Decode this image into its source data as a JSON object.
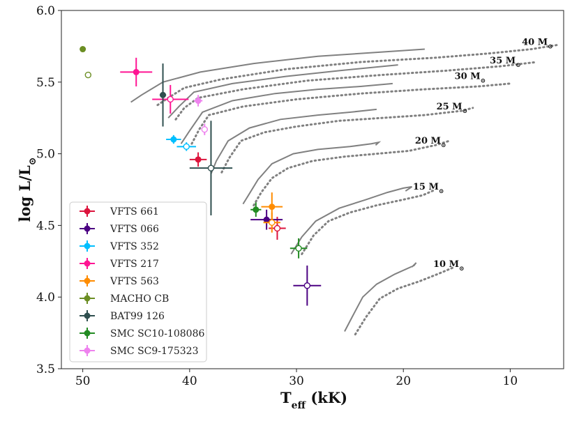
{
  "chart_data": {
    "type": "scatter",
    "title": "",
    "xlabel": "T_eff (kK)",
    "xlabel_main": "T",
    "xlabel_sub": "eff",
    "xlabel_unit": "(kK)",
    "ylabel": "log L/L⊙",
    "ylabel_main": "log L/L",
    "ylabel_sub": "⊙",
    "xlim": [
      52,
      5
    ],
    "ylim": [
      3.5,
      6.0
    ],
    "x_ticks": [
      50,
      40,
      30,
      20,
      10
    ],
    "x_tick_labels": [
      "50",
      "40",
      "30",
      "20",
      "10"
    ],
    "y_ticks": [
      3.5,
      4.0,
      4.5,
      5.0,
      5.5,
      6.0
    ],
    "y_tick_labels": [
      "3.5",
      "4.0",
      "4.5",
      "5.0",
      "5.5",
      "6.0"
    ],
    "legend_position": "lower-left",
    "series": [
      {
        "name": "VFTS 661",
        "color": "#dc143c",
        "filled": {
          "x": 39.2,
          "y": 4.96,
          "xerr": 0.8,
          "yerr": 0.05
        },
        "open": {
          "x": 31.8,
          "y": 4.48,
          "xerr": 0.8,
          "yerr": 0.08
        }
      },
      {
        "name": "VFTS 066",
        "color": "#4b0082",
        "filled": {
          "x": 32.8,
          "y": 4.54,
          "xerr": 1.5,
          "yerr": 0.07
        },
        "open": {
          "x": 29.0,
          "y": 4.08,
          "xerr": 1.3,
          "yerr": 0.14
        }
      },
      {
        "name": "VFTS 352",
        "color": "#00bfff",
        "filled": {
          "x": 41.5,
          "y": 5.1,
          "xerr": 0.7,
          "yerr": 0.03
        },
        "open": {
          "x": 40.3,
          "y": 5.05,
          "xerr": 0.9,
          "yerr": 0.03
        }
      },
      {
        "name": "VFTS 217",
        "color": "#ff1493",
        "filled": {
          "x": 45.0,
          "y": 5.57,
          "xerr": 1.5,
          "yerr": 0.1
        },
        "open": {
          "x": 41.8,
          "y": 5.38,
          "xerr": 1.7,
          "yerr": 0.1
        }
      },
      {
        "name": "VFTS 563",
        "color": "#ff8c00",
        "filled": {
          "x": 32.3,
          "y": 4.63,
          "xerr": 1.0,
          "yerr": 0.1
        },
        "open": {
          "x": 32.3,
          "y": 4.52,
          "xerr": 0.8,
          "yerr": 0.07
        }
      },
      {
        "name": "MACHO CB",
        "color": "#6b8e23",
        "filled": {
          "x": 50.0,
          "y": 5.73,
          "xerr": 0,
          "yerr": 0
        },
        "open": {
          "x": 49.5,
          "y": 5.55,
          "xerr": 0,
          "yerr": 0
        }
      },
      {
        "name": "BAT99 126",
        "color": "#2f4f4f",
        "filled": {
          "x": 42.5,
          "y": 5.41,
          "xerr": 0.3,
          "yerr": 0.22
        },
        "open": {
          "x": 38.0,
          "y": 4.9,
          "xerr": 2.0,
          "yerr": 0.33
        }
      },
      {
        "name": "SMC SC10-108086",
        "color": "#228b22",
        "filled": {
          "x": 33.8,
          "y": 4.61,
          "xerr": 0.5,
          "yerr": 0.05
        },
        "open": {
          "x": 29.8,
          "y": 4.34,
          "xerr": 0.8,
          "yerr": 0.07
        }
      },
      {
        "name": "SMC SC9-175323",
        "color": "#ee82ee",
        "filled": {
          "x": 39.2,
          "y": 5.37,
          "xerr": 0.4,
          "yerr": 0.04
        },
        "open": {
          "x": 38.6,
          "y": 5.17,
          "xerr": 0.3,
          "yerr": 0.04
        }
      }
    ],
    "tracks": [
      {
        "label": "10 M",
        "label_sub": "⊙",
        "label_at": [
          14.3,
          4.21
        ],
        "solid": [
          [
            25.5,
            3.76
          ],
          [
            24.8,
            3.86
          ],
          [
            23.8,
            4.0
          ],
          [
            22.5,
            4.09
          ],
          [
            20.8,
            4.16
          ],
          [
            19.0,
            4.22
          ],
          [
            18.8,
            4.24
          ],
          [
            19.2,
            4.21
          ]
        ],
        "dotted": [
          [
            24.5,
            3.74
          ],
          [
            23.5,
            3.86
          ],
          [
            22.2,
            3.99
          ],
          [
            20.5,
            4.06
          ],
          [
            18.5,
            4.11
          ],
          [
            16.8,
            4.16
          ],
          [
            15.2,
            4.21
          ]
        ]
      },
      {
        "label": "15 M",
        "label_sub": "⊙",
        "label_at": [
          16.2,
          4.75
        ],
        "solid": [
          [
            30.5,
            4.3
          ],
          [
            29.5,
            4.42
          ],
          [
            28.2,
            4.53
          ],
          [
            26.0,
            4.62
          ],
          [
            23.5,
            4.68
          ],
          [
            21.5,
            4.73
          ],
          [
            20.0,
            4.76
          ],
          [
            19.2,
            4.77
          ],
          [
            19.8,
            4.74
          ]
        ],
        "dotted": [
          [
            29.5,
            4.3
          ],
          [
            28.4,
            4.43
          ],
          [
            27.0,
            4.53
          ],
          [
            25.0,
            4.59
          ],
          [
            22.5,
            4.64
          ],
          [
            20.0,
            4.68
          ],
          [
            18.2,
            4.71
          ],
          [
            17.0,
            4.75
          ]
        ]
      },
      {
        "label": "20 M",
        "label_sub": "⊙",
        "label_at": [
          16.0,
          5.07
        ],
        "solid": [
          [
            35.0,
            4.65
          ],
          [
            34.5,
            4.71
          ],
          [
            33.6,
            4.82
          ],
          [
            32.3,
            4.93
          ],
          [
            30.3,
            5.0
          ],
          [
            28.0,
            5.03
          ],
          [
            25.0,
            5.05
          ],
          [
            23.0,
            5.07
          ],
          [
            22.3,
            5.08
          ],
          [
            22.6,
            5.06
          ]
        ],
        "dotted": [
          [
            34.0,
            4.64
          ],
          [
            33.3,
            4.73
          ],
          [
            32.3,
            4.83
          ],
          [
            30.8,
            4.9
          ],
          [
            28.5,
            4.95
          ],
          [
            25.5,
            4.98
          ],
          [
            22.5,
            5.0
          ],
          [
            19.5,
            5.02
          ],
          [
            17.0,
            5.06
          ],
          [
            15.7,
            5.09
          ]
        ]
      },
      {
        "label": "25 M",
        "label_sub": "⊙",
        "label_at": [
          14.0,
          5.31
        ],
        "solid": [
          [
            38.0,
            4.86
          ],
          [
            37.5,
            4.95
          ],
          [
            36.4,
            5.09
          ],
          [
            34.4,
            5.18
          ],
          [
            31.5,
            5.24
          ],
          [
            28.0,
            5.27
          ],
          [
            25.0,
            5.29
          ],
          [
            22.5,
            5.31
          ]
        ],
        "dotted": [
          [
            37.0,
            4.87
          ],
          [
            36.3,
            4.97
          ],
          [
            35.2,
            5.09
          ],
          [
            33.0,
            5.15
          ],
          [
            30.0,
            5.19
          ],
          [
            26.0,
            5.23
          ],
          [
            22.0,
            5.25
          ],
          [
            18.0,
            5.27
          ],
          [
            14.5,
            5.3
          ],
          [
            13.5,
            5.32
          ]
        ]
      },
      {
        "label": "30 M",
        "label_sub": "⊙",
        "label_at": [
          12.3,
          5.52
        ],
        "solid": [
          [
            40.8,
            5.07
          ],
          [
            40.0,
            5.16
          ],
          [
            38.8,
            5.29
          ],
          [
            36.0,
            5.37
          ],
          [
            32.0,
            5.42
          ],
          [
            28.0,
            5.45
          ],
          [
            24.0,
            5.47
          ],
          [
            21.0,
            5.49
          ]
        ],
        "dotted": [
          [
            39.8,
            5.07
          ],
          [
            39.1,
            5.17
          ],
          [
            38.2,
            5.27
          ],
          [
            35.0,
            5.33
          ],
          [
            30.0,
            5.38
          ],
          [
            24.0,
            5.42
          ],
          [
            18.0,
            5.45
          ],
          [
            13.0,
            5.47
          ],
          [
            10.0,
            5.49
          ]
        ]
      },
      {
        "label": "35 M",
        "label_sub": "⊙",
        "label_at": [
          9.0,
          5.63
        ],
        "solid": [
          [
            42.0,
            5.25
          ],
          [
            41.0,
            5.33
          ],
          [
            39.6,
            5.43
          ],
          [
            36.0,
            5.49
          ],
          [
            31.0,
            5.54
          ],
          [
            26.0,
            5.58
          ],
          [
            20.5,
            5.62
          ]
        ],
        "dotted": [
          [
            41.3,
            5.24
          ],
          [
            40.5,
            5.32
          ],
          [
            39.2,
            5.39
          ],
          [
            35.0,
            5.45
          ],
          [
            29.0,
            5.51
          ],
          [
            22.0,
            5.55
          ],
          [
            16.0,
            5.58
          ],
          [
            11.0,
            5.61
          ],
          [
            7.5,
            5.64
          ]
        ]
      },
      {
        "label": "40 M",
        "label_sub": "⊙",
        "label_at": [
          6.0,
          5.76
        ],
        "solid": [
          [
            45.5,
            5.36
          ],
          [
            44.5,
            5.41
          ],
          [
            42.5,
            5.5
          ],
          [
            39.0,
            5.57
          ],
          [
            34.0,
            5.63
          ],
          [
            28.0,
            5.68
          ],
          [
            22.0,
            5.71
          ],
          [
            18.0,
            5.73
          ]
        ],
        "dotted": [
          [
            43.0,
            5.34
          ],
          [
            42.0,
            5.39
          ],
          [
            40.5,
            5.46
          ],
          [
            37.0,
            5.52
          ],
          [
            31.0,
            5.59
          ],
          [
            24.0,
            5.64
          ],
          [
            17.0,
            5.67
          ],
          [
            12.0,
            5.7
          ],
          [
            8.0,
            5.73
          ],
          [
            5.5,
            5.76
          ]
        ]
      }
    ]
  }
}
